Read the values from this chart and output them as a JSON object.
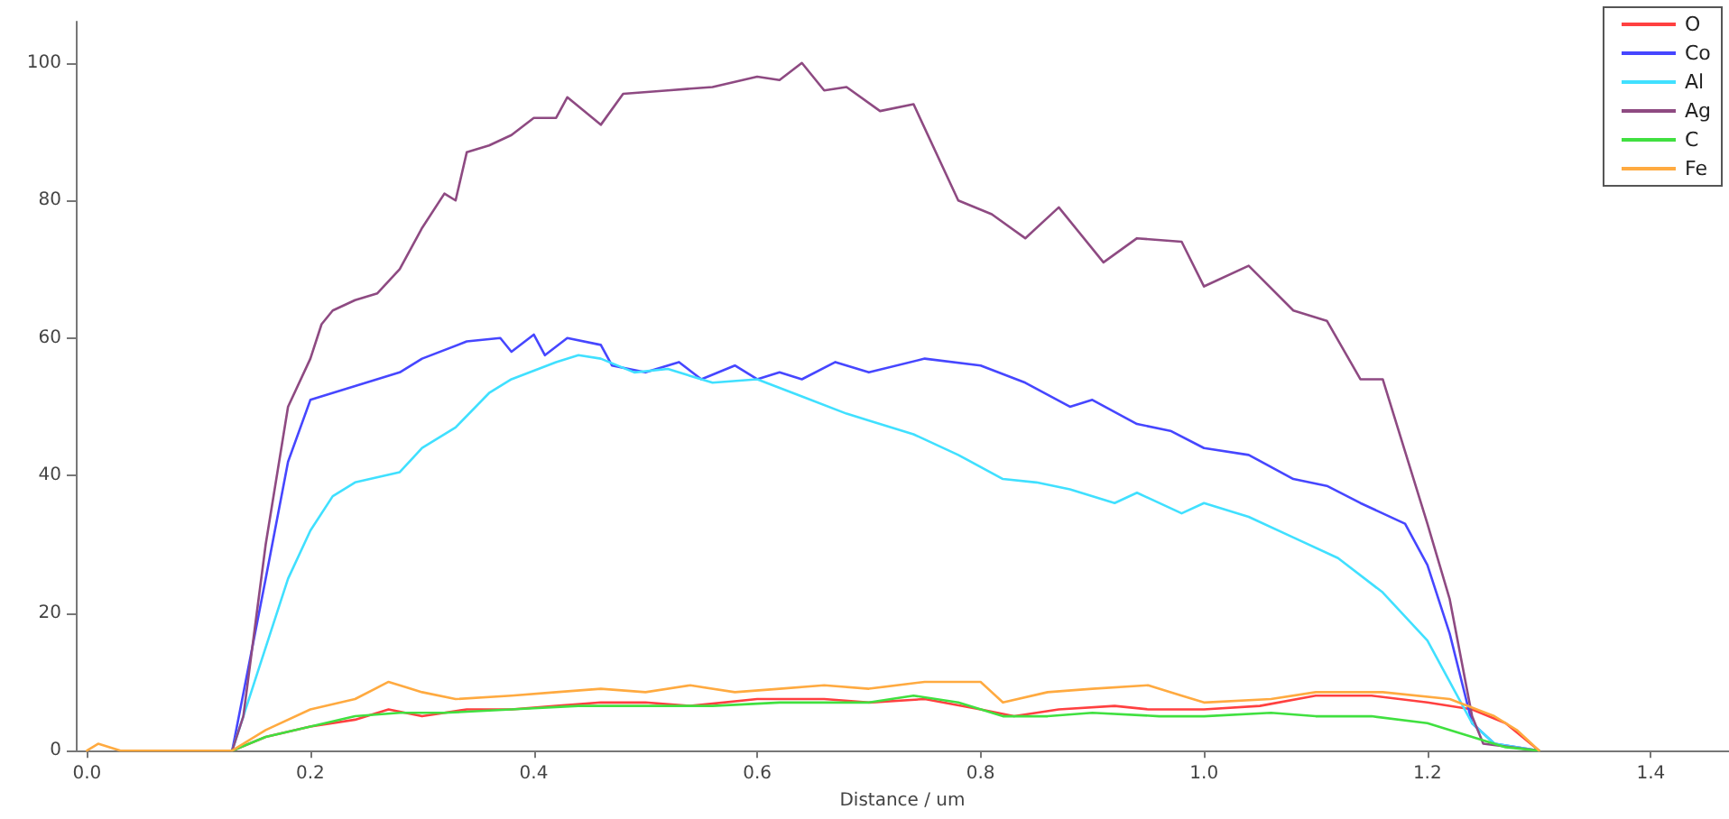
{
  "chart_data": {
    "type": "line",
    "xlabel": "Distance / um",
    "xlim": [
      -0.01,
      1.47
    ],
    "xticks": [
      {
        "value": 0,
        "label": "0.0"
      },
      0.2,
      0.4,
      0.6,
      0.8,
      {
        "value": 1,
        "label": "1.0"
      },
      1.2,
      1.4
    ],
    "ylim": [
      0,
      106
    ],
    "yticks": [
      0,
      20,
      40,
      60,
      80,
      100
    ],
    "grid": false,
    "legend": "top right",
    "marker": "none",
    "line_style": "solid",
    "series": [
      {
        "name": "O",
        "color": "#ff4040",
        "x": [
          0.13,
          0.16,
          0.2,
          0.24,
          0.27,
          0.3,
          0.34,
          0.38,
          0.42,
          0.46,
          0.5,
          0.54,
          0.6,
          0.66,
          0.7,
          0.75,
          0.8,
          0.83,
          0.87,
          0.92,
          0.95,
          1.0,
          1.05,
          1.1,
          1.15,
          1.2,
          1.24,
          1.27,
          1.3
        ],
        "values": [
          0,
          2,
          3.5,
          4.5,
          6,
          5,
          6,
          6,
          6.5,
          7,
          7,
          6.5,
          7.5,
          7.5,
          7,
          7.5,
          6,
          5,
          6,
          6.5,
          6,
          6,
          6.5,
          8,
          8,
          7,
          6,
          4,
          0
        ]
      },
      {
        "name": "Co",
        "color": "#4646ff",
        "x": [
          0.13,
          0.16,
          0.18,
          0.2,
          0.24,
          0.28,
          0.3,
          0.34,
          0.37,
          0.38,
          0.4,
          0.41,
          0.43,
          0.46,
          0.47,
          0.5,
          0.53,
          0.55,
          0.58,
          0.6,
          0.62,
          0.64,
          0.67,
          0.7,
          0.75,
          0.8,
          0.84,
          0.88,
          0.9,
          0.94,
          0.97,
          1.0,
          1.04,
          1.08,
          1.11,
          1.14,
          1.18,
          1.2,
          1.22,
          1.24,
          1.26,
          1.3
        ],
        "values": [
          0,
          25,
          42,
          51,
          53,
          55,
          57,
          59.5,
          60,
          58,
          60.5,
          57.5,
          60,
          59,
          56,
          55,
          56.5,
          54,
          56,
          54,
          55,
          54,
          56.5,
          55,
          57,
          56,
          53.5,
          50,
          51,
          47.5,
          46.5,
          44,
          43,
          39.5,
          38.5,
          36,
          33,
          27,
          17,
          4,
          1,
          0
        ]
      },
      {
        "name": "Al",
        "color": "#40e0ff",
        "x": [
          0.13,
          0.15,
          0.18,
          0.2,
          0.22,
          0.24,
          0.28,
          0.3,
          0.33,
          0.36,
          0.38,
          0.42,
          0.44,
          0.46,
          0.49,
          0.52,
          0.56,
          0.6,
          0.64,
          0.68,
          0.7,
          0.74,
          0.78,
          0.82,
          0.85,
          0.88,
          0.92,
          0.94,
          0.98,
          1.0,
          1.04,
          1.08,
          1.12,
          1.16,
          1.2,
          1.22,
          1.24,
          1.26,
          1.3
        ],
        "values": [
          0,
          10,
          25,
          32,
          37,
          39,
          40.5,
          44,
          47,
          52,
          54,
          56.5,
          57.5,
          57,
          55,
          55.5,
          53.5,
          54,
          51.5,
          49,
          48,
          46,
          43,
          39.5,
          39,
          38,
          36,
          37.5,
          34.5,
          36,
          34,
          31,
          28,
          23,
          16,
          10,
          4,
          1,
          0
        ]
      },
      {
        "name": "Ag",
        "color": "#8e4a82",
        "x": [
          0.13,
          0.14,
          0.16,
          0.18,
          0.2,
          0.21,
          0.22,
          0.24,
          0.26,
          0.28,
          0.3,
          0.32,
          0.33,
          0.34,
          0.36,
          0.38,
          0.4,
          0.42,
          0.43,
          0.46,
          0.48,
          0.52,
          0.56,
          0.6,
          0.62,
          0.64,
          0.66,
          0.68,
          0.71,
          0.74,
          0.78,
          0.81,
          0.84,
          0.87,
          0.91,
          0.94,
          0.98,
          1.0,
          1.04,
          1.08,
          1.11,
          1.14,
          1.16,
          1.2,
          1.22,
          1.24,
          1.25,
          1.3
        ],
        "values": [
          0,
          5,
          30,
          50,
          57,
          62,
          64,
          65.5,
          66.5,
          70,
          76,
          81,
          80,
          87,
          88,
          89.5,
          92,
          92,
          95,
          91,
          95.5,
          96,
          96.5,
          98,
          97.5,
          100,
          96,
          96.5,
          93,
          94,
          80,
          78,
          74.5,
          79,
          71,
          74.5,
          74,
          67.5,
          70.5,
          64,
          62.5,
          54,
          54,
          33,
          22,
          5,
          1,
          0
        ]
      },
      {
        "name": "C",
        "color": "#40e040",
        "x": [
          0.13,
          0.16,
          0.2,
          0.24,
          0.28,
          0.32,
          0.38,
          0.44,
          0.5,
          0.56,
          0.62,
          0.7,
          0.74,
          0.78,
          0.82,
          0.86,
          0.9,
          0.96,
          1.0,
          1.06,
          1.1,
          1.15,
          1.2,
          1.24,
          1.27,
          1.3
        ],
        "values": [
          0,
          2,
          3.5,
          5,
          5.5,
          5.5,
          6,
          6.5,
          6.5,
          6.5,
          7,
          7,
          8,
          7,
          5,
          5,
          5.5,
          5,
          5,
          5.5,
          5,
          5,
          4,
          2,
          0.5,
          0
        ]
      },
      {
        "name": "Fe",
        "color": "#ffaa40",
        "x": [
          0,
          0.01,
          0.03,
          0.12,
          0.13,
          0.16,
          0.2,
          0.24,
          0.27,
          0.3,
          0.33,
          0.38,
          0.42,
          0.46,
          0.5,
          0.54,
          0.58,
          0.62,
          0.66,
          0.7,
          0.75,
          0.8,
          0.82,
          0.86,
          0.9,
          0.95,
          0.98,
          1.0,
          1.06,
          1.1,
          1.16,
          1.22,
          1.26,
          1.28,
          1.3
        ],
        "values": [
          0,
          1,
          0,
          0,
          0,
          3,
          6,
          7.5,
          10,
          8.5,
          7.5,
          8,
          8.5,
          9,
          8.5,
          9.5,
          8.5,
          9,
          9.5,
          9,
          10,
          10,
          7,
          8.5,
          9,
          9.5,
          8,
          7,
          7.5,
          8.5,
          8.5,
          7.5,
          5,
          3,
          0
        ]
      }
    ]
  }
}
